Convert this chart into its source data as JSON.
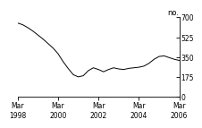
{
  "ylabel": "no.",
  "ylim": [
    0,
    700
  ],
  "yticks": [
    0,
    175,
    350,
    525,
    700
  ],
  "xtick_labels": [
    "Mar\n1998",
    "Mar\n2000",
    "Mar\n2002",
    "Mar\n2004",
    "Mar\n2006"
  ],
  "xtick_positions": [
    0,
    8,
    16,
    24,
    32
  ],
  "line_color": "#000000",
  "background_color": "#ffffff",
  "x": [
    0,
    1,
    2,
    3,
    4,
    5,
    6,
    7,
    8,
    9,
    10,
    11,
    12,
    13,
    14,
    15,
    16,
    17,
    18,
    19,
    20,
    21,
    22,
    23,
    24,
    25,
    26,
    27,
    28,
    29,
    30,
    31,
    32
  ],
  "y": [
    650,
    635,
    610,
    580,
    545,
    510,
    470,
    430,
    380,
    310,
    250,
    195,
    175,
    185,
    230,
    255,
    240,
    220,
    240,
    255,
    245,
    240,
    250,
    255,
    260,
    270,
    295,
    330,
    355,
    360,
    345,
    330,
    320
  ]
}
